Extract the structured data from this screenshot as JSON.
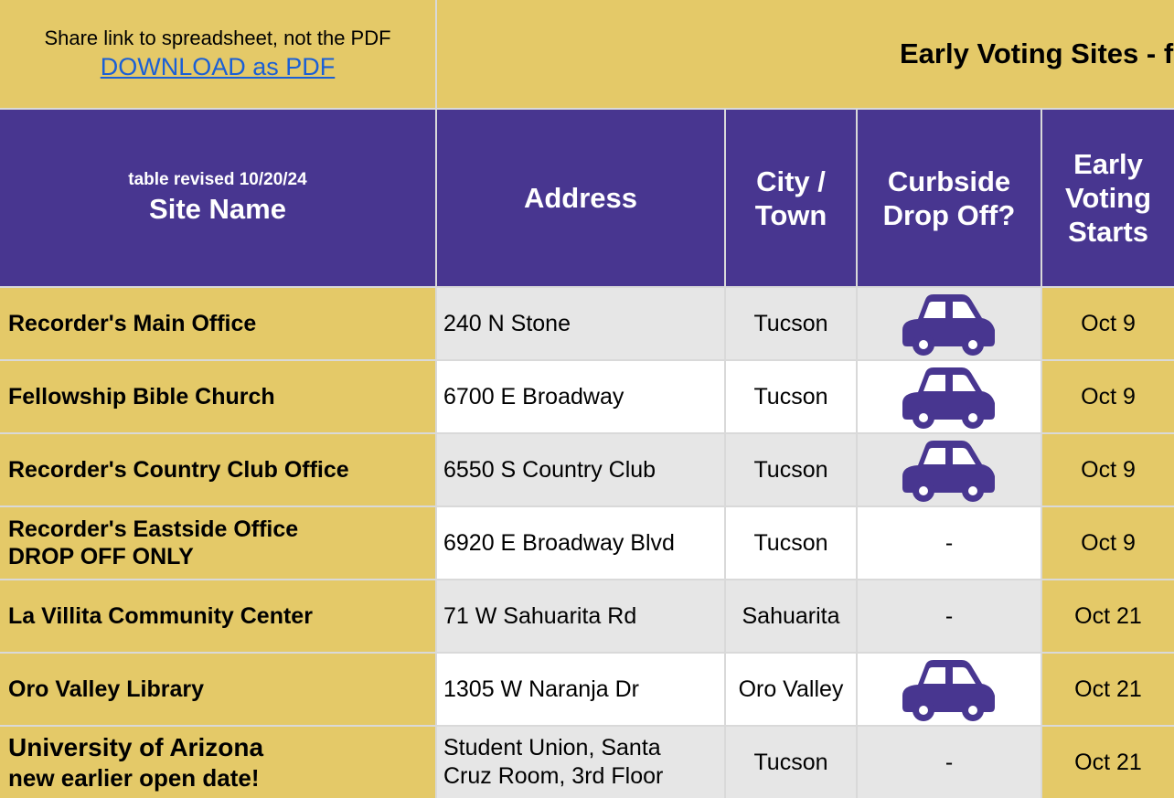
{
  "top": {
    "note": "Share link to spreadsheet, not the PDF",
    "link": "DOWNLOAD as PDF",
    "title": "Early Voting Sites - f"
  },
  "header": {
    "revised": "table revised 10/20/24",
    "site_name": "Site Name",
    "address": "Address",
    "city": [
      "City /",
      "Town"
    ],
    "curbside": [
      "Curbside",
      "Drop Off?"
    ],
    "starts": [
      "Early",
      "Voting",
      "Starts"
    ]
  },
  "colors": {
    "gold": "#e4c968",
    "purple": "#483690",
    "car": "#483690",
    "link": "#1a5fd6"
  },
  "rows": [
    {
      "name": [
        "Recorder's Main Office"
      ],
      "address": [
        "240 N Stone"
      ],
      "city": "Tucson",
      "curbside": "car-icon",
      "starts": "Oct 9"
    },
    {
      "name": [
        "Fellowship Bible Church"
      ],
      "address": [
        "6700 E Broadway"
      ],
      "city": "Tucson",
      "curbside": "car-icon",
      "starts": "Oct 9"
    },
    {
      "name": [
        "Recorder's Country Club Office"
      ],
      "address": [
        "6550 S Country Club"
      ],
      "city": "Tucson",
      "curbside": "car-icon",
      "starts": "Oct 9"
    },
    {
      "name": [
        "Recorder's Eastside Office",
        "DROP OFF ONLY"
      ],
      "address": [
        "6920 E Broadway Blvd"
      ],
      "city": "Tucson",
      "curbside": "-",
      "starts": "Oct 9"
    },
    {
      "name": [
        "La Villita Community Center"
      ],
      "address": [
        "71 W Sahuarita Rd"
      ],
      "city": "Sahuarita",
      "curbside": "-",
      "starts": "Oct 21"
    },
    {
      "name": [
        "Oro Valley Library"
      ],
      "address": [
        "1305 W Naranja Dr"
      ],
      "city": "Oro Valley",
      "curbside": "car-icon",
      "starts": "Oct 21"
    },
    {
      "name": [
        "University of Arizona",
        "new earlier open date!"
      ],
      "address": [
        "Student Union, Santa",
        "Cruz Room, 3rd Floor"
      ],
      "city": "Tucson",
      "curbside": "-",
      "starts": "Oct 21"
    }
  ]
}
